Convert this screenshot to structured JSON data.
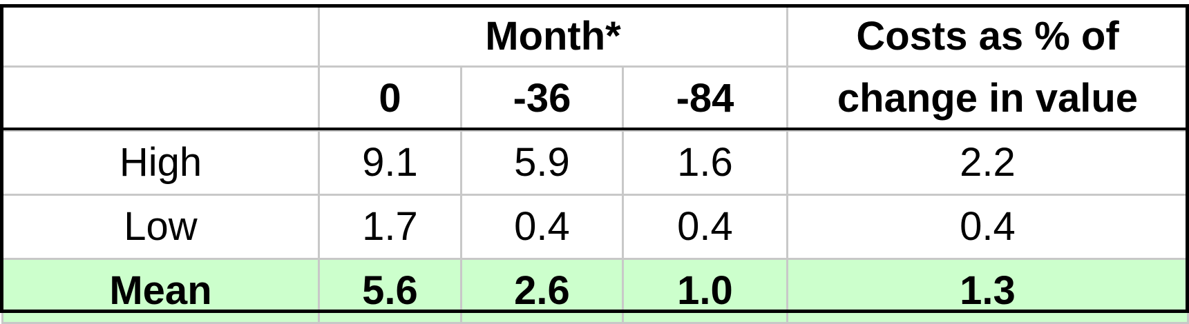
{
  "chart_data": {
    "type": "table",
    "header_group": {
      "month_label": "Month*",
      "costs_label_line1": "Costs as % of",
      "costs_label_line2": "change in value"
    },
    "columns": [
      "0",
      "-36",
      "-84"
    ],
    "rows": [
      {
        "label": "High",
        "values": [
          "9.1",
          "5.9",
          "1.6"
        ],
        "costs": "2.2"
      },
      {
        "label": "Low",
        "values": [
          "1.7",
          "0.4",
          "0.4"
        ],
        "costs": "0.4"
      },
      {
        "label": "Mean",
        "values": [
          "5.6",
          "2.6",
          "1.0"
        ],
        "costs": "1.3"
      }
    ]
  },
  "colors": {
    "mean_row_background": "#ccffcc",
    "grid_lines": "#c8c8c8",
    "frame": "#000000"
  }
}
